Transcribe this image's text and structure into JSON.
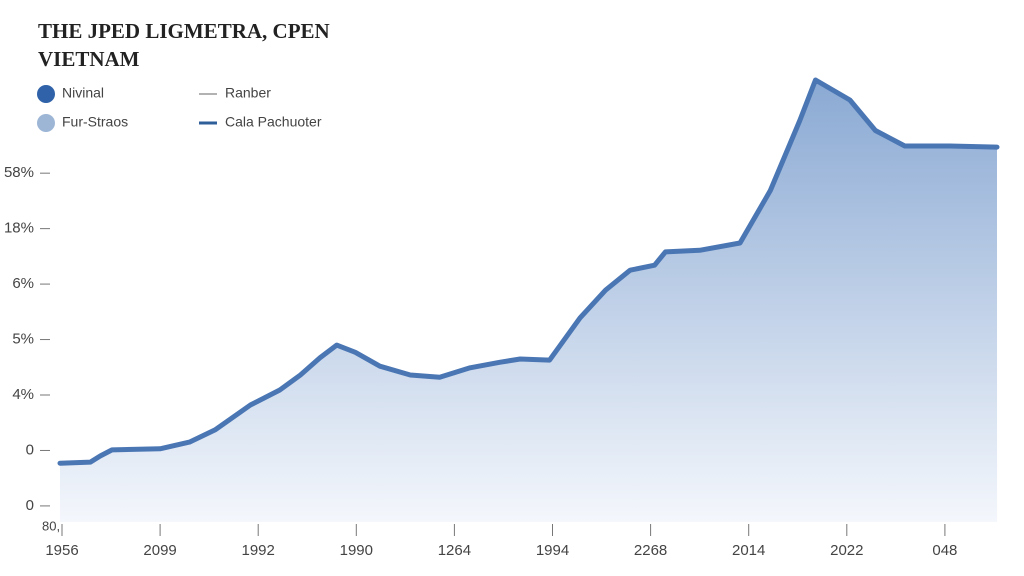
{
  "chart_data": {
    "type": "area",
    "title": "THE JPED LIGMETRA, CPEN",
    "subtitle": "VIETNAM",
    "legend": [
      {
        "name": "Nivinal",
        "marker": "dot",
        "color": "#2f62a8"
      },
      {
        "name": "Ranber",
        "marker": "line",
        "color": "#999999"
      },
      {
        "name": "Fur-Straos",
        "marker": "dot",
        "color": "#9db6d6"
      },
      {
        "name": "Cala Pachuoter",
        "marker": "line",
        "color": "#2f5f98"
      }
    ],
    "categories": [
      "1956",
      "2099",
      "1992",
      "1990",
      "1264",
      "1994",
      "2268",
      "2014",
      "2022",
      "048"
    ],
    "corner_label": "80,",
    "x": [
      -0.02,
      0.29,
      0.39,
      0.51,
      1.0,
      1.3,
      1.56,
      1.92,
      2.22,
      2.43,
      2.63,
      2.8,
      2.99,
      3.24,
      3.55,
      3.85,
      4.16,
      4.46,
      4.67,
      4.97,
      5.28,
      5.54,
      5.79,
      6.04,
      6.15,
      6.5,
      6.91,
      7.22,
      7.52,
      7.68,
      8.03,
      8.29,
      8.59,
      9.05,
      9.53
    ],
    "values": [
      0.77,
      0.79,
      0.9,
      1.01,
      1.03,
      1.15,
      1.37,
      1.82,
      2.09,
      2.36,
      2.67,
      2.9,
      2.77,
      2.52,
      2.36,
      2.32,
      2.49,
      2.59,
      2.65,
      2.63,
      3.39,
      3.89,
      4.25,
      4.34,
      4.58,
      4.61,
      4.74,
      5.69,
      6.95,
      7.68,
      7.32,
      6.77,
      6.49,
      6.49,
      6.47
    ],
    "color": "#4a76b4",
    "xlim": [
      -0.02,
      9.55
    ],
    "ylim": [
      -0.29,
      7.68
    ],
    "yticks": [
      {
        "value": 0,
        "label": "0"
      },
      {
        "value": 1,
        "label": "0"
      },
      {
        "value": 2,
        "label": "4%"
      },
      {
        "value": 3,
        "label": "5%"
      },
      {
        "value": 4,
        "label": "6%"
      },
      {
        "value": 5,
        "label": "18%"
      },
      {
        "value": 6,
        "label": "58%"
      }
    ],
    "grid": false
  }
}
